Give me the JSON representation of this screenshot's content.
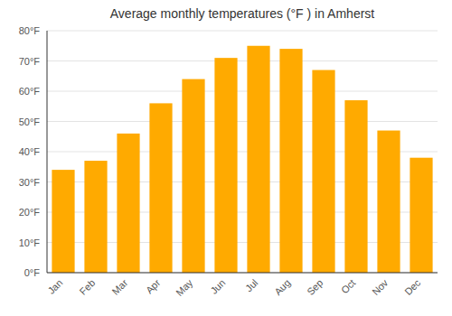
{
  "chart_data": {
    "type": "bar",
    "title": "Average monthly temperatures (°F ) in Amherst",
    "categories": [
      "Jan",
      "Feb",
      "Mar",
      "Apr",
      "May",
      "Jun",
      "Jul",
      "Aug",
      "Sep",
      "Oct",
      "Nov",
      "Dec"
    ],
    "values": [
      34,
      37,
      46,
      56,
      64,
      71,
      75,
      74,
      67,
      57,
      47,
      38
    ],
    "color": "#FFAA00",
    "ylim": [
      0,
      80
    ],
    "yticks": [
      {
        "value": 0,
        "label": "0°F"
      },
      {
        "value": 10,
        "label": "10°F"
      },
      {
        "value": 20,
        "label": "20°F"
      },
      {
        "value": 30,
        "label": "30°F"
      },
      {
        "value": 40,
        "label": "40°F"
      },
      {
        "value": 50,
        "label": "50°F"
      },
      {
        "value": 60,
        "label": "60°F"
      },
      {
        "value": 70,
        "label": "70°F"
      },
      {
        "value": 80,
        "label": "80°F"
      }
    ],
    "grid": true
  }
}
